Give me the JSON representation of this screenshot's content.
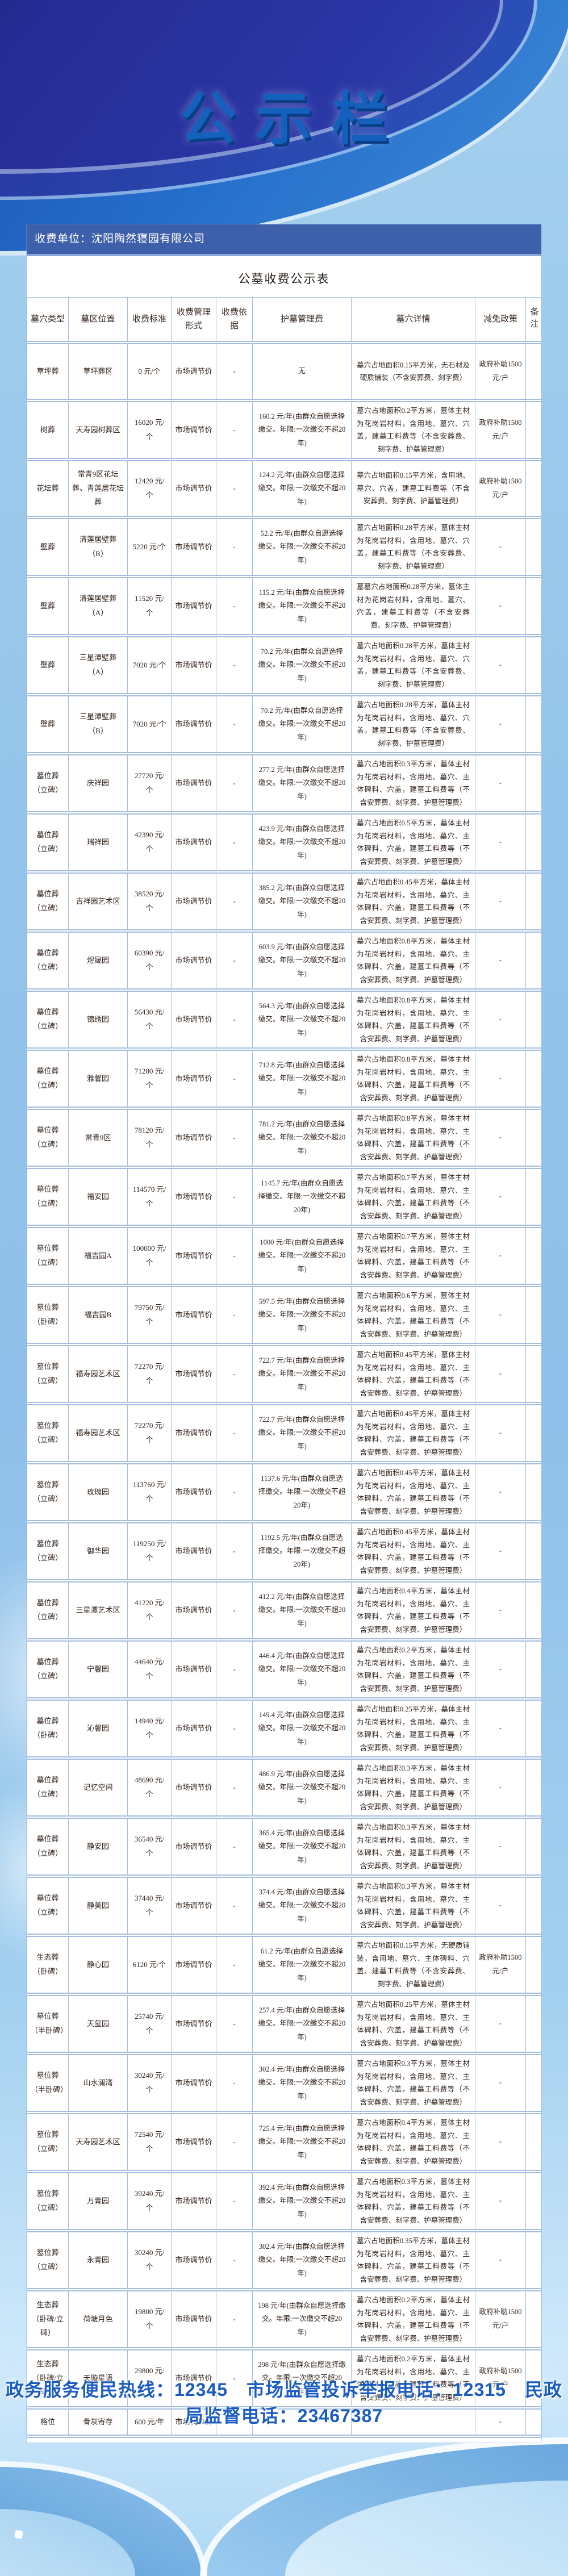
{
  "page": {
    "title": "公示栏"
  },
  "board": {
    "unit_label": "收费单位：沈阳陶然寝园有限公司",
    "table_title": "公墓收费公示表"
  },
  "table": {
    "columns": [
      "墓穴类型",
      "墓区位置",
      "收费标准",
      "收费管理形式",
      "收费依据",
      "护墓管理费",
      "墓穴详情",
      "减免政策",
      "备注"
    ],
    "rows": [
      {
        "type": "草坪葬",
        "loc": "草坪葬区",
        "price": "0 元/个",
        "mgmt": "市场调节价",
        "basis": "-",
        "care": "无",
        "detail": "墓穴占地面积0.15平方米，无石材及硬质铺装（不含安葬费、刻字费）",
        "policy": "政府补助1500 元/户",
        "note": ""
      },
      {
        "type": "树葬",
        "loc": "天寿园树葬区",
        "price": "16020 元/个",
        "mgmt": "市场调节价",
        "basis": "-",
        "care": "160.2 元/年(由群众自愿选择缴交。年限:一次缴交不超20年)",
        "detail": "墓穴占地面积0.2平方米，墓体主材为花岗岩材料，含用地、墓穴、穴盖，建墓工料费等（不含安葬费、刻字费、护墓管理费）",
        "policy": "政府补助1500 元/户",
        "note": ""
      },
      {
        "type": "花坛葬",
        "loc": "常青9区花坛葬、青莲居花坛葬",
        "price": "12420 元/个",
        "mgmt": "市场调节价",
        "basis": "-",
        "care": "124.2 元/年(由群众自愿选择缴交。年限:一次缴交不超20年)",
        "detail": "墓穴占地面积0.15平方米，含用地、墓穴、穴盖，建墓工料费等（不含安葬费、刻字费、护墓管理费）",
        "policy": "政府补助1500 元/户",
        "note": ""
      },
      {
        "type": "壁葬",
        "loc": "清莲居壁葬（B）",
        "price": "5220 元/个",
        "mgmt": "市场调节价",
        "basis": "-",
        "care": "52.2 元/年(由群众自愿选择缴交。年限:一次缴交不超20年)",
        "detail": "墓穴占地面积0.28平方米，墓体主材为花岗岩材料，含用地、墓穴、穴盖，建墓工料费等（不含安葬费、刻字费、护墓管理费）",
        "policy": "-",
        "note": ""
      },
      {
        "type": "壁葬",
        "loc": "清莲居壁葬（A）",
        "price": "11520 元/个",
        "mgmt": "市场调节价",
        "basis": "-",
        "care": "115.2 元/年(由群众自愿选择缴交。年限:一次缴交不超20年)",
        "detail": "墓墓穴占地面积0.28平方米，墓体主材为花岗岩材料，含用地、墓穴、穴盖，建墓工料费等（不含安葬费、刻字费、护墓管理费）",
        "policy": "-",
        "note": ""
      },
      {
        "type": "壁葬",
        "loc": "三星潭壁葬（A）",
        "price": "7020 元/个",
        "mgmt": "市场调节价",
        "basis": "-",
        "care": "70.2 元/年(由群众自愿选择缴交。年限:一次缴交不超20年)",
        "detail": "墓穴占地面积0.28平方米，墓体主材为花岗岩材料，含用地、墓穴、穴盖，建墓工料费等（不含安葬费、刻字费、护墓管理费）",
        "policy": "-",
        "note": ""
      },
      {
        "type": "壁葬",
        "loc": "三星潭壁葬（B）",
        "price": "7020 元/个",
        "mgmt": "市场调节价",
        "basis": "-",
        "care": "70.2 元/年(由群众自愿选择缴交。年限:一次缴交不超20年)",
        "detail": "墓穴占地面积0.28平方米，墓体主材为花岗岩材料，含用地、墓穴、穴盖，建墓工料费等（不含安葬费、刻字费、护墓管理费）",
        "policy": "-",
        "note": ""
      },
      {
        "type": "墓位葬（立碑）",
        "loc": "庆祥园",
        "price": "27720 元/个",
        "mgmt": "市场调节价",
        "basis": "-",
        "care": "277.2 元/年(由群众自愿选择缴交。年限:一次缴交不超20年)",
        "detail": "墓穴占地面积0.3平方米，墓体主材为花岗岩材料，含用地、墓穴、主体碑料、穴盖，建墓工料费等（不含安葬费、刻字费、护墓管理费）",
        "policy": "-",
        "note": ""
      },
      {
        "type": "墓位葬（立碑）",
        "loc": "瑞祥园",
        "price": "42390 元/个",
        "mgmt": "市场调节价",
        "basis": "-",
        "care": "423.9 元/年(由群众自愿选择缴交。年限:一次缴交不超20年)",
        "detail": "墓穴占地面积0.5平方米，墓体主材为花岗岩材料，含用地、墓穴、主体碑料、穴盖，建墓工料费等（不含安葬费、刻字费、护墓管理费）",
        "policy": "-",
        "note": ""
      },
      {
        "type": "墓位葬（立碑）",
        "loc": "吉祥园艺术区",
        "price": "38520 元/个",
        "mgmt": "市场调节价",
        "basis": "-",
        "care": "385.2 元/年(由群众自愿选择缴交。年限:一次缴交不超20年)",
        "detail": "墓穴占地面积0.45平方米，墓体主材为花岗岩材料，含用地、墓穴、主体碑料、穴盖，建墓工料费等（不含安葬费、刻字费、护墓管理费）",
        "policy": "-",
        "note": ""
      },
      {
        "type": "墓位葬（立碑）",
        "loc": "煜晟园",
        "price": "60390 元/个",
        "mgmt": "市场调节价",
        "basis": "-",
        "care": "603.9 元/年(由群众自愿选择缴交。年限:一次缴交不超20年)",
        "detail": "墓穴占地面积0.8平方米，墓体主材为花岗岩材料，含用地、墓穴、主体碑料、穴盖，建墓工料费等（不含安葬费、刻字费、护墓管理费）",
        "policy": "-",
        "note": ""
      },
      {
        "type": "墓位葬（立碑）",
        "loc": "锦绣园",
        "price": "56430 元/个",
        "mgmt": "市场调节价",
        "basis": "-",
        "care": "564.3 元/年(由群众自愿选择缴交。年限:一次缴交不超20年)",
        "detail": "墓穴占地面积0.8平方米，墓体主材为花岗岩材料，含用地、墓穴、主体碑料、穴盖，建墓工料费等（不含安葬费、刻字费、护墓管理费）",
        "policy": "-",
        "note": ""
      },
      {
        "type": "墓位葬（立碑）",
        "loc": "雅馨园",
        "price": "71280 元/个",
        "mgmt": "市场调节价",
        "basis": "-",
        "care": "712.8 元/年(由群众自愿选择缴交。年限:一次缴交不超20年)",
        "detail": "墓穴占地面积0.8平方米，墓体主材为花岗岩材料，含用地、墓穴、主体碑料、穴盖，建墓工料费等（不含安葬费、刻字费、护墓管理费）",
        "policy": "-",
        "note": ""
      },
      {
        "type": "墓位葬（立碑）",
        "loc": "常青9区",
        "price": "78120 元/个",
        "mgmt": "市场调节价",
        "basis": "-",
        "care": "781.2 元/年(由群众自愿选择缴交。年限:一次缴交不超20年)",
        "detail": "墓穴占地面积0.8平方米，墓体主材为花岗岩材料，含用地、墓穴、主体碑料、穴盖，建墓工料费等（不含安葬费、刻字费、护墓管理费）",
        "policy": "-",
        "note": ""
      },
      {
        "type": "墓位葬（立碑）",
        "loc": "福安园",
        "price": "114570 元/个",
        "mgmt": "市场调节价",
        "basis": "-",
        "care": "1145.7 元/年(由群众自愿选择缴交。年限:一次缴交不超20年)",
        "detail": "墓穴占地面积0.7平方米，墓体主材为花岗岩材料，含用地、墓穴、主体碑料、穴盖，建墓工料费等（不含安葬费、刻字费、护墓管理费）",
        "policy": "-",
        "note": ""
      },
      {
        "type": "墓位葬（立碑）",
        "loc": "福吉园A",
        "price": "100000 元/个",
        "mgmt": "市场调节价",
        "basis": "-",
        "care": "1000 元/年(由群众自愿选择缴交。年限:一次缴交不超20年)",
        "detail": "墓穴占地面积0.7平方米，墓体主材为花岗岩材料，含用地、墓穴、主体碑料、穴盖，建墓工料费等（不含安葬费、刻字费、护墓管理费）",
        "policy": "-",
        "note": ""
      },
      {
        "type": "墓位葬（卧碑）",
        "loc": "福吉园B",
        "price": "79750 元/个",
        "mgmt": "市场调节价",
        "basis": "-",
        "care": "597.5 元/年(由群众自愿选择缴交。年限:一次缴交不超20年)",
        "detail": "墓穴占地面积0.6平方米，墓体主材为花岗岩材料，含用地、墓穴、主体碑料、穴盖，建墓工料费等（不含安葬费、刻字费、护墓管理费）",
        "policy": "-",
        "note": ""
      },
      {
        "type": "墓位葬（立碑）",
        "loc": "福寿园艺术区",
        "price": "72270 元/个",
        "mgmt": "市场调节价",
        "basis": "-",
        "care": "722.7 元/年(由群众自愿选择缴交。年限:一次缴交不超20年)",
        "detail": "墓穴占地面积0.45平方米，墓体主材为花岗岩材料，含用地、墓穴、主体碑料、穴盖，建墓工料费等（不含安葬费、刻字费、护墓管理费）",
        "policy": "-",
        "note": ""
      },
      {
        "type": "墓位葬（立碑）",
        "loc": "福寿园艺术区",
        "price": "72270 元/个",
        "mgmt": "市场调节价",
        "basis": "-",
        "care": "722.7 元/年(由群众自愿选择缴交。年限:一次缴交不超20年)",
        "detail": "墓穴占地面积0.45平方米，墓体主材为花岗岩材料，含用地、墓穴、主体碑料、穴盖，建墓工料费等（不含安葬费、刻字费、护墓管理费）",
        "policy": "-",
        "note": ""
      },
      {
        "type": "墓位葬（立碑）",
        "loc": "玫瑰园",
        "price": "113760 元/个",
        "mgmt": "市场调节价",
        "basis": "-",
        "care": "1137.6 元/年(由群众自愿选择缴交。年限:一次缴交不超20年)",
        "detail": "墓穴占地面积0.45平方米，墓体主材为花岗岩材料，含用地、墓穴、主体碑料、穴盖，建墓工料费等（不含安葬费、刻字费、护墓管理费）",
        "policy": "-",
        "note": ""
      },
      {
        "type": "墓位葬（立碑）",
        "loc": "御华园",
        "price": "119250 元/个",
        "mgmt": "市场调节价",
        "basis": "-",
        "care": "1192.5 元/年(由群众自愿选择缴交。年限:一次缴交不超20年)",
        "detail": "墓穴占地面积0.45平方米，墓体主材为花岗岩材料，含用地、墓穴、主体碑料、穴盖，建墓工料费等（不含安葬费、刻字费、护墓管理费）",
        "policy": "-",
        "note": ""
      },
      {
        "type": "墓位葬（立碑）",
        "loc": "三星潭艺术区",
        "price": "41220 元/个",
        "mgmt": "市场调节价",
        "basis": "-",
        "care": "412.2 元/年(由群众自愿选择缴交。年限:一次缴交不超20年)",
        "detail": "墓穴占地面积0.4平方米，墓体主材为花岗岩材料，含用地、墓穴、主体碑料、穴盖，建墓工料费等（不含安葬费、刻字费、护墓管理费）",
        "policy": "-",
        "note": ""
      },
      {
        "type": "墓位葬（立碑）",
        "loc": "宁馨园",
        "price": "44640 元/个",
        "mgmt": "市场调节价",
        "basis": "-",
        "care": "446.4 元/年(由群众自愿选择缴交。年限:一次缴交不超20年)",
        "detail": "墓穴占地面积0.2平方米，墓体主材为花岗岩材料，含用地、墓穴、主体碑料、穴盖，建墓工料费等（不含安葬费、刻字费、护墓管理费）",
        "policy": "-",
        "note": ""
      },
      {
        "type": "墓位葬（卧碑）",
        "loc": "沁馨园",
        "price": "14940 元/个",
        "mgmt": "市场调节价",
        "basis": "-",
        "care": "149.4 元/年(由群众自愿选择缴交。年限:一次缴交不超20年)",
        "detail": "墓穴占地面积0.25平方米，墓体主材为花岗岩材料，含用地、墓穴、主体碑料、穴盖，建墓工料费等（不含安葬费、刻字费、护墓管理费）",
        "policy": "-",
        "note": ""
      },
      {
        "type": "墓位葬（立碑）",
        "loc": "记忆空间",
        "price": "48690 元/个",
        "mgmt": "市场调节价",
        "basis": "-",
        "care": "486.9 元/年(由群众自愿选择缴交。年限:一次缴交不超20年)",
        "detail": "墓穴占地面积0.3平方米，墓体主材为花岗岩材料，含用地、墓穴、主体碑料、穴盖，建墓工料费等（不含安葬费、刻字费、护墓管理费）",
        "policy": "-",
        "note": ""
      },
      {
        "type": "墓位葬（立碑）",
        "loc": "静安园",
        "price": "36540 元/个",
        "mgmt": "市场调节价",
        "basis": "-",
        "care": "365.4 元/年(由群众自愿选择缴交。年限:一次缴交不超20年)",
        "detail": "墓穴占地面积0.3平方米，墓体主材为花岗岩材料，含用地、墓穴、主体碑料、穴盖，建墓工料费等（不含安葬费、刻字费、护墓管理费）",
        "policy": "-",
        "note": ""
      },
      {
        "type": "墓位葬（立碑）",
        "loc": "静美园",
        "price": "37440 元/个",
        "mgmt": "市场调节价",
        "basis": "-",
        "care": "374.4 元/年(由群众自愿选择缴交。年限:一次缴交不超20年)",
        "detail": "墓穴占地面积0.3平方米，墓体主材为花岗岩材料，含用地、墓穴、主体碑料、穴盖，建墓工料费等（不含安葬费、刻字费、护墓管理费）",
        "policy": "-",
        "note": ""
      },
      {
        "type": "生态葬（卧碑）",
        "loc": "静心园",
        "price": "6120 元/个",
        "mgmt": "市场调节价",
        "basis": "-",
        "care": "61.2 元/年(由群众自愿选择缴交。年限:一次缴交不超20年)",
        "detail": "墓穴占地面积0.15平方米，无硬质铺装，含用地、墓穴、主体碑料、穴盖、建墓工料费等（不含安葬费、刻字费、护墓管理费）",
        "policy": "政府补助1500 元/户",
        "note": ""
      },
      {
        "type": "墓位葬（半卧碑）",
        "loc": "天玺园",
        "price": "25740 元/个",
        "mgmt": "市场调节价",
        "basis": "-",
        "care": "257.4 元/年(由群众自愿选择缴交。年限:一次缴交不超20年)",
        "detail": "墓穴占地面积0.25平方米，墓体主材为花岗岩材料，含用地、墓穴、主体碑料、穴盖，建墓工料费等（不含安葬费、刻字费、护墓管理费）",
        "policy": "-",
        "note": ""
      },
      {
        "type": "墓位葬（半卧碑）",
        "loc": "山水澜湾",
        "price": "30240 元/个",
        "mgmt": "市场调节价",
        "basis": "-",
        "care": "302.4 元/年(由群众自愿选择缴交。年限:一次缴交不超20年)",
        "detail": "墓穴占地面积0.3平方米，墓体主材为花岗岩材料，含用地、墓穴、主体碑料、穴盖，建墓工料费等（不含安葬费、刻字费、护墓管理费）",
        "policy": "-",
        "note": ""
      },
      {
        "type": "墓位葬（立碑）",
        "loc": "天寿园艺术区",
        "price": "72540 元/个",
        "mgmt": "市场调节价",
        "basis": "-",
        "care": "725.4 元/年(由群众自愿选择缴交。年限:一次缴交不超20年)",
        "detail": "墓穴占地面积0.4平方米，墓体主材为花岗岩材料，含用地、墓穴、主体碑料、穴盖，建墓工料费等（不含安葬费、刻字费、护墓管理费）",
        "policy": "-",
        "note": ""
      },
      {
        "type": "墓位葬（立碑）",
        "loc": "万青园",
        "price": "39240 元/个",
        "mgmt": "市场调节价",
        "basis": "-",
        "care": "392.4 元/年(由群众自愿选择缴交。年限:一次缴交不超20年)",
        "detail": "墓穴占地面积0.3平方米，墓体主材为花岗岩材料，含用地、墓穴、主体碑料、穴盖，建墓工料费等（不含安葬费、刻字费、护墓管理费）",
        "policy": "-",
        "note": ""
      },
      {
        "type": "墓位葬（立碑）",
        "loc": "永青园",
        "price": "30240 元/个",
        "mgmt": "市场调节价",
        "basis": "-",
        "care": "302.4 元/年(由群众自愿选择缴交。年限:一次缴交不超20年)",
        "detail": "墓穴占地面积0.35平方米，墓体主材为花岗岩材料，含用地、墓穴、主体碑料、穴盖，建墓工料费等（不含安葬费、刻字费、护墓管理费）",
        "policy": "-",
        "note": ""
      },
      {
        "type": "生态葬（卧碑/立碑）",
        "loc": "荷塘月色",
        "price": "19800 元/个",
        "mgmt": "市场调节价",
        "basis": "-",
        "care": "198 元/年(由群众自愿选择缴交。年限:一次缴交不超20年)",
        "detail": "墓穴占地面积0.2平方米，墓体主材为花岗岩材料，含用地、墓穴、主体碑料、穴盖，建墓工料费等（不含安葬费、刻字费、护墓管理费）",
        "policy": "政府补助1500 元/户",
        "note": ""
      },
      {
        "type": "生态葬（卧碑/立碑）",
        "loc": "天璇星语",
        "price": "29800 元/个",
        "mgmt": "市场调节价",
        "basis": "-",
        "care": "298 元/年(由群众自愿选择缴交。年限:一次缴交不超20年)",
        "detail": "墓穴占地面积0.2平方米，墓体主材为花岗岩材料，含用地、墓穴、主体碑料、穴盖，建墓工料费等（不含安葬费、刻字费、护墓管理费）",
        "policy": "政府补助1500 元/户",
        "note": ""
      },
      {
        "type": "格位",
        "loc": "骨灰寄存",
        "price": "600 元/年",
        "mgmt": "市场调节价",
        "basis": "-",
        "care": "-",
        "detail": "",
        "policy": "-",
        "note": ""
      }
    ]
  },
  "footer": {
    "hotline_text": "政务服务便民热线：12345　市场监管投诉举报电话：12315　民政局监督电话：23467387"
  },
  "colors": {
    "accent": "#1460bd",
    "band_navy": "#272e99",
    "band_blue": "#2570cb",
    "unit_bar_blue": "#3e60aa",
    "table_border": "#a5bedf",
    "text": "#33241c"
  }
}
